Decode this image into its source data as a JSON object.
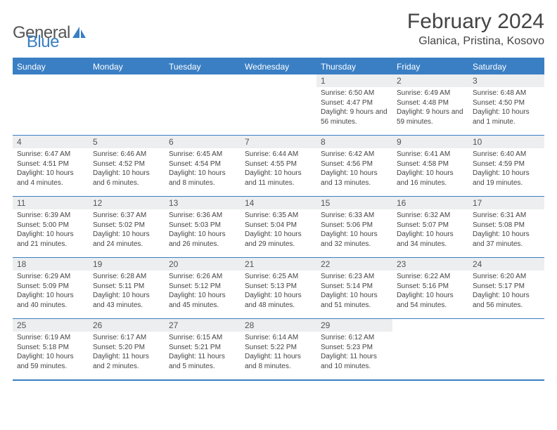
{
  "logo": {
    "general": "General",
    "blue": "Blue"
  },
  "title": "February 2024",
  "location": "Glanica, Pristina, Kosovo",
  "colors": {
    "header_bg": "#3a7fc4",
    "header_text": "#ffffff",
    "daynum_bg": "#eceeef",
    "border": "#3a7fc4",
    "body_text": "#444444",
    "page_bg": "#ffffff"
  },
  "typography": {
    "title_fontsize": 30,
    "location_fontsize": 16,
    "weekday_fontsize": 12,
    "daynum_fontsize": 12,
    "body_fontsize": 10,
    "logo_fontsize": 24
  },
  "weekdays": [
    "Sunday",
    "Monday",
    "Tuesday",
    "Wednesday",
    "Thursday",
    "Friday",
    "Saturday"
  ],
  "weeks": [
    [
      null,
      null,
      null,
      null,
      {
        "n": "1",
        "sunrise": "Sunrise: 6:50 AM",
        "sunset": "Sunset: 4:47 PM",
        "daylight": "Daylight: 9 hours and 56 minutes."
      },
      {
        "n": "2",
        "sunrise": "Sunrise: 6:49 AM",
        "sunset": "Sunset: 4:48 PM",
        "daylight": "Daylight: 9 hours and 59 minutes."
      },
      {
        "n": "3",
        "sunrise": "Sunrise: 6:48 AM",
        "sunset": "Sunset: 4:50 PM",
        "daylight": "Daylight: 10 hours and 1 minute."
      }
    ],
    [
      {
        "n": "4",
        "sunrise": "Sunrise: 6:47 AM",
        "sunset": "Sunset: 4:51 PM",
        "daylight": "Daylight: 10 hours and 4 minutes."
      },
      {
        "n": "5",
        "sunrise": "Sunrise: 6:46 AM",
        "sunset": "Sunset: 4:52 PM",
        "daylight": "Daylight: 10 hours and 6 minutes."
      },
      {
        "n": "6",
        "sunrise": "Sunrise: 6:45 AM",
        "sunset": "Sunset: 4:54 PM",
        "daylight": "Daylight: 10 hours and 8 minutes."
      },
      {
        "n": "7",
        "sunrise": "Sunrise: 6:44 AM",
        "sunset": "Sunset: 4:55 PM",
        "daylight": "Daylight: 10 hours and 11 minutes."
      },
      {
        "n": "8",
        "sunrise": "Sunrise: 6:42 AM",
        "sunset": "Sunset: 4:56 PM",
        "daylight": "Daylight: 10 hours and 13 minutes."
      },
      {
        "n": "9",
        "sunrise": "Sunrise: 6:41 AM",
        "sunset": "Sunset: 4:58 PM",
        "daylight": "Daylight: 10 hours and 16 minutes."
      },
      {
        "n": "10",
        "sunrise": "Sunrise: 6:40 AM",
        "sunset": "Sunset: 4:59 PM",
        "daylight": "Daylight: 10 hours and 19 minutes."
      }
    ],
    [
      {
        "n": "11",
        "sunrise": "Sunrise: 6:39 AM",
        "sunset": "Sunset: 5:00 PM",
        "daylight": "Daylight: 10 hours and 21 minutes."
      },
      {
        "n": "12",
        "sunrise": "Sunrise: 6:37 AM",
        "sunset": "Sunset: 5:02 PM",
        "daylight": "Daylight: 10 hours and 24 minutes."
      },
      {
        "n": "13",
        "sunrise": "Sunrise: 6:36 AM",
        "sunset": "Sunset: 5:03 PM",
        "daylight": "Daylight: 10 hours and 26 minutes."
      },
      {
        "n": "14",
        "sunrise": "Sunrise: 6:35 AM",
        "sunset": "Sunset: 5:04 PM",
        "daylight": "Daylight: 10 hours and 29 minutes."
      },
      {
        "n": "15",
        "sunrise": "Sunrise: 6:33 AM",
        "sunset": "Sunset: 5:06 PM",
        "daylight": "Daylight: 10 hours and 32 minutes."
      },
      {
        "n": "16",
        "sunrise": "Sunrise: 6:32 AM",
        "sunset": "Sunset: 5:07 PM",
        "daylight": "Daylight: 10 hours and 34 minutes."
      },
      {
        "n": "17",
        "sunrise": "Sunrise: 6:31 AM",
        "sunset": "Sunset: 5:08 PM",
        "daylight": "Daylight: 10 hours and 37 minutes."
      }
    ],
    [
      {
        "n": "18",
        "sunrise": "Sunrise: 6:29 AM",
        "sunset": "Sunset: 5:09 PM",
        "daylight": "Daylight: 10 hours and 40 minutes."
      },
      {
        "n": "19",
        "sunrise": "Sunrise: 6:28 AM",
        "sunset": "Sunset: 5:11 PM",
        "daylight": "Daylight: 10 hours and 43 minutes."
      },
      {
        "n": "20",
        "sunrise": "Sunrise: 6:26 AM",
        "sunset": "Sunset: 5:12 PM",
        "daylight": "Daylight: 10 hours and 45 minutes."
      },
      {
        "n": "21",
        "sunrise": "Sunrise: 6:25 AM",
        "sunset": "Sunset: 5:13 PM",
        "daylight": "Daylight: 10 hours and 48 minutes."
      },
      {
        "n": "22",
        "sunrise": "Sunrise: 6:23 AM",
        "sunset": "Sunset: 5:14 PM",
        "daylight": "Daylight: 10 hours and 51 minutes."
      },
      {
        "n": "23",
        "sunrise": "Sunrise: 6:22 AM",
        "sunset": "Sunset: 5:16 PM",
        "daylight": "Daylight: 10 hours and 54 minutes."
      },
      {
        "n": "24",
        "sunrise": "Sunrise: 6:20 AM",
        "sunset": "Sunset: 5:17 PM",
        "daylight": "Daylight: 10 hours and 56 minutes."
      }
    ],
    [
      {
        "n": "25",
        "sunrise": "Sunrise: 6:19 AM",
        "sunset": "Sunset: 5:18 PM",
        "daylight": "Daylight: 10 hours and 59 minutes."
      },
      {
        "n": "26",
        "sunrise": "Sunrise: 6:17 AM",
        "sunset": "Sunset: 5:20 PM",
        "daylight": "Daylight: 11 hours and 2 minutes."
      },
      {
        "n": "27",
        "sunrise": "Sunrise: 6:15 AM",
        "sunset": "Sunset: 5:21 PM",
        "daylight": "Daylight: 11 hours and 5 minutes."
      },
      {
        "n": "28",
        "sunrise": "Sunrise: 6:14 AM",
        "sunset": "Sunset: 5:22 PM",
        "daylight": "Daylight: 11 hours and 8 minutes."
      },
      {
        "n": "29",
        "sunrise": "Sunrise: 6:12 AM",
        "sunset": "Sunset: 5:23 PM",
        "daylight": "Daylight: 11 hours and 10 minutes."
      },
      null,
      null
    ]
  ]
}
